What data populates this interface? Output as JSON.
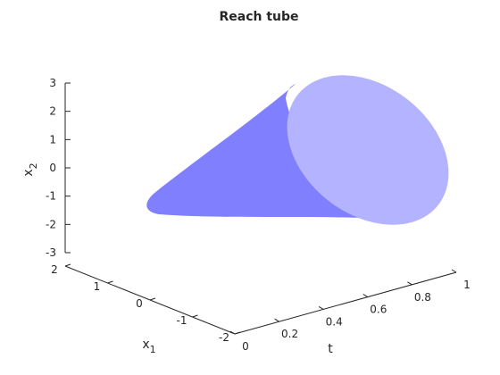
{
  "chart_data": {
    "type": "surface3d",
    "title": "Reach tube",
    "xlabel": "t",
    "ylabel": "x_1",
    "zlabel": "x_2",
    "xlabel_main": "x",
    "xlabel_sub": "1",
    "zlabel_main": "x",
    "zlabel_sub": "2",
    "t_ticks": [
      "0",
      "0.2",
      "0.4",
      "0.6",
      "0.8",
      "1"
    ],
    "x1_ticks": [
      "2",
      "1",
      "0",
      "-1",
      "-2"
    ],
    "x2_ticks": [
      "3",
      "2",
      "1",
      "0",
      "-1",
      "-2",
      "-3"
    ],
    "tlim": [
      0,
      1
    ],
    "x1lim": [
      -2,
      2
    ],
    "x2lim": [
      -3,
      3
    ],
    "grid": false,
    "series": [
      {
        "role": "tube",
        "color": "#8080ff"
      },
      {
        "role": "end-cap",
        "color": "#b3b3ff"
      }
    ]
  }
}
